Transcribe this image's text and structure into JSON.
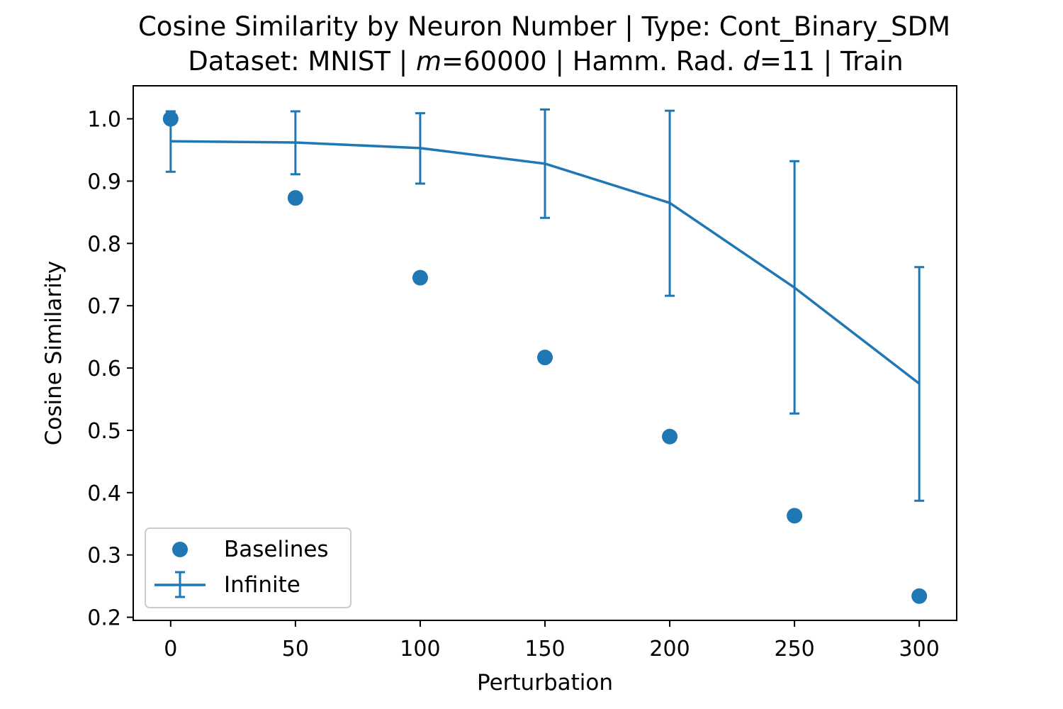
{
  "chart_data": {
    "type": "line",
    "title_line1": "Cosine Similarity by Neuron Number | Type: Cont_Binary_SDM",
    "title_line2": {
      "part1": "Dataset: MNIST | ",
      "m_var": "m",
      "part2": "=60000 | Hamm. Rad. ",
      "d_var": "d",
      "part3": "=11 | Train"
    },
    "xlabel": "Perturbation",
    "ylabel": "Cosine Similarity",
    "xlim": [
      -15,
      315
    ],
    "ylim": [
      0.195,
      1.053
    ],
    "x_ticks": [
      0,
      50,
      100,
      150,
      200,
      250,
      300
    ],
    "y_ticks": [
      0.2,
      0.3,
      0.4,
      0.5,
      0.6,
      0.7,
      0.8,
      0.9,
      1.0
    ],
    "y_tick_labels": [
      "0.2",
      "0.3",
      "0.4",
      "0.5",
      "0.6",
      "0.7",
      "0.8",
      "0.9",
      "1.0"
    ],
    "x": [
      0,
      50,
      100,
      150,
      200,
      250,
      300
    ],
    "series": [
      {
        "name": "Baselines",
        "kind": "scatter",
        "color": "#1f77b4",
        "values": [
          1.0,
          0.873,
          0.745,
          0.617,
          0.49,
          0.363,
          0.234
        ]
      },
      {
        "name": "Infinite",
        "kind": "errorbar-line",
        "color": "#1f77b4",
        "values": [
          0.964,
          0.962,
          0.953,
          0.928,
          0.865,
          0.729,
          0.575
        ],
        "error_low": [
          0.915,
          0.911,
          0.896,
          0.841,
          0.716,
          0.527,
          0.387
        ],
        "error_high": [
          1.012,
          1.012,
          1.009,
          1.015,
          1.013,
          0.932,
          0.762
        ]
      }
    ],
    "legend_position": "lower-left",
    "grid": false
  }
}
